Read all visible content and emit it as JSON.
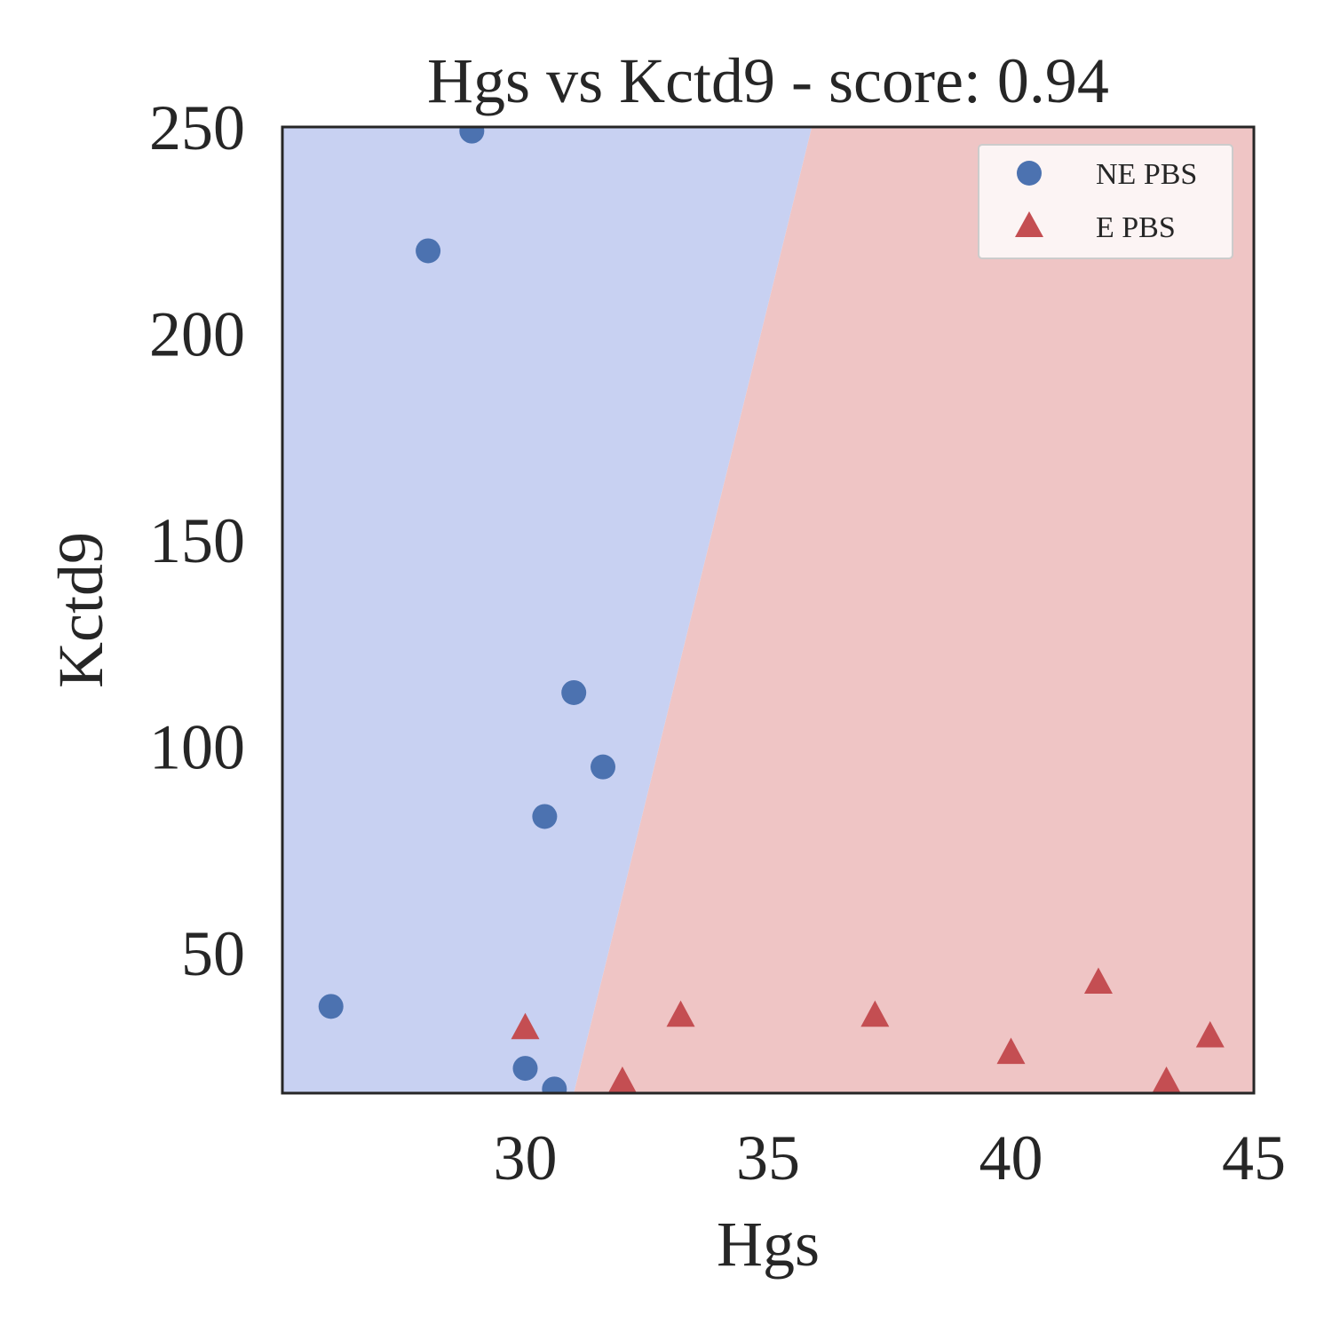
{
  "chart_data": {
    "type": "scatter",
    "title": "Hgs vs Kctd9 - score: 0.94",
    "xlabel": "Hgs",
    "ylabel": "Kctd9",
    "xlim": [
      25,
      45
    ],
    "ylim": [
      16,
      250
    ],
    "xticks": [
      30,
      35,
      40,
      45
    ],
    "yticks": [
      50,
      100,
      150,
      200,
      250
    ],
    "grid": false,
    "legend_position": "top-right",
    "decision_regions": {
      "boundary": [
        [
          31.0,
          16
        ],
        [
          35.9,
          250
        ]
      ],
      "left_color": "#c8d1f2",
      "right_color": "#efc5c5"
    },
    "series": [
      {
        "name": "NE PBS",
        "marker": "circle",
        "color": "#4c72b0",
        "points": [
          [
            28.9,
            249
          ],
          [
            28.0,
            220
          ],
          [
            31.0,
            113
          ],
          [
            31.6,
            95
          ],
          [
            30.4,
            83
          ],
          [
            26.0,
            37
          ],
          [
            30.0,
            22
          ],
          [
            30.6,
            17
          ]
        ]
      },
      {
        "name": "E PBS",
        "marker": "triangle",
        "color": "#c44e52",
        "points": [
          [
            30.0,
            32
          ],
          [
            33.2,
            35
          ],
          [
            37.2,
            35
          ],
          [
            41.8,
            43
          ],
          [
            40.0,
            26
          ],
          [
            44.1,
            30
          ],
          [
            32.0,
            19
          ],
          [
            43.2,
            19
          ]
        ]
      }
    ]
  }
}
